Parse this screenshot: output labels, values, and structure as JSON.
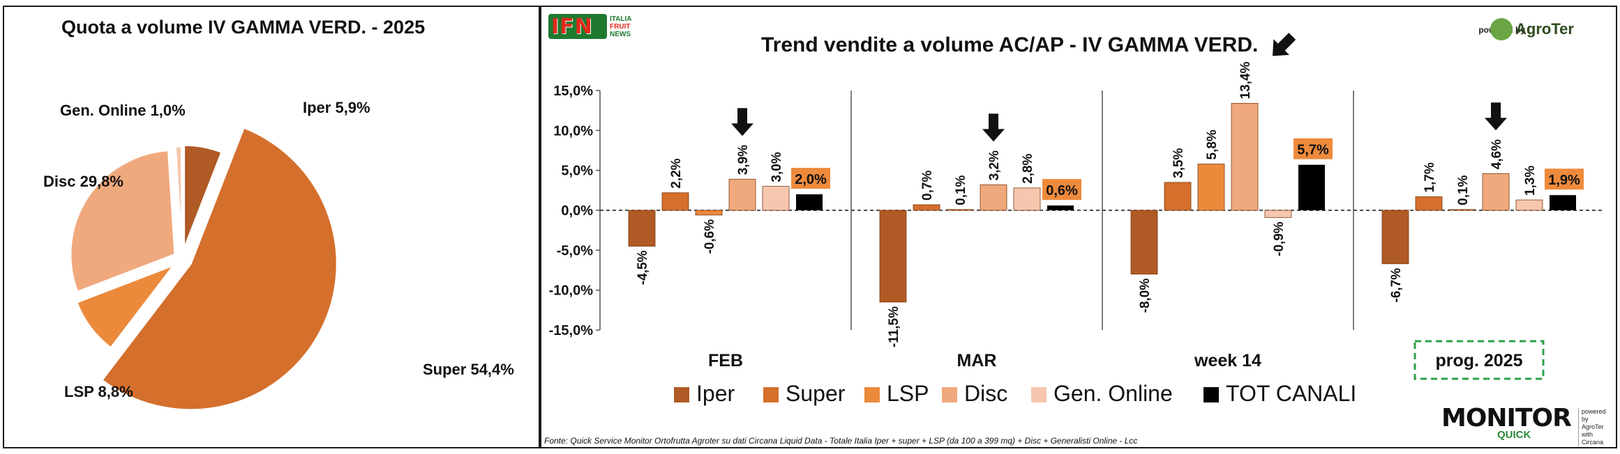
{
  "pie_title": "Quota a volume IV GAMMA VERD. - 2025",
  "bar_title": "Trend vendite a volume AC/AP - IV GAMMA VERD.",
  "logos": {
    "ifn": "IFN",
    "ifn_sub": [
      "ITALIA",
      "FRUIT",
      "NEWS"
    ],
    "powered_by": "powered by",
    "agroter": "AgroTer",
    "monitor": "MONITOR",
    "monitor_sub": "QUICK",
    "monitor_side": [
      "powered by",
      "AgroTer",
      "with",
      "Circana"
    ]
  },
  "source": "Fonte: Quick Service Monitor Ortofrutta Agroter su dati Circana Liquid Data - Totale Italia Iper + super + LSP (da 100 a 399 mq) + Disc + Generalisti Online - Lcc",
  "colors": {
    "Iper": "#b05a25",
    "Super": "#d46f2c",
    "LSP": "#ec8a3c",
    "Disc": "#f0a97d",
    "Gen. Online": "#f6c7ae",
    "TOT CANALI": "#000000",
    "highlight_label_bg": "#ee8a3c",
    "dashed_box": "#2ca04a"
  },
  "chart_data": [
    {
      "type": "pie",
      "title": "Quota a volume IV GAMMA VERD. - 2025",
      "slices": [
        {
          "name": "Iper",
          "value": 5.9,
          "label": "Iper 5,9%"
        },
        {
          "name": "Super",
          "value": 54.4,
          "label": "Super 54,4%"
        },
        {
          "name": "LSP",
          "value": 8.8,
          "label": "LSP 8,8%"
        },
        {
          "name": "Disc",
          "value": 29.8,
          "label": "Disc 29,8%"
        },
        {
          "name": "Gen. Online",
          "value": 1.0,
          "label": "Gen. Online 1,0%"
        }
      ]
    },
    {
      "type": "bar",
      "title": "Trend vendite a volume AC/AP - IV GAMMA VERD.",
      "categories": [
        "FEB",
        "MAR",
        "week 14",
        "prog. 2025"
      ],
      "ylim": [
        -15,
        15
      ],
      "yticks": [
        "-15,0%",
        "-10,0%",
        "-5,0%",
        "0,0%",
        "5,0%",
        "10,0%",
        "15,0%"
      ],
      "grid": false,
      "legend_position": "bottom",
      "series": [
        {
          "name": "Iper",
          "values": [
            -4.5,
            -11.5,
            -8.0,
            -6.7
          ],
          "labels": [
            "-4,5%",
            "-11,5%",
            "-8,0%",
            "-6,7%"
          ]
        },
        {
          "name": "Super",
          "values": [
            2.2,
            0.7,
            3.5,
            1.7
          ],
          "labels": [
            "2,2%",
            "0,7%",
            "3,5%",
            "1,7%"
          ]
        },
        {
          "name": "LSP",
          "values": [
            -0.6,
            0.1,
            5.8,
            0.1
          ],
          "labels": [
            "-0,6%",
            "0,1%",
            "5,8%",
            "0,1%"
          ]
        },
        {
          "name": "Disc",
          "values": [
            3.9,
            3.2,
            13.4,
            4.6
          ],
          "labels": [
            "3,9%",
            "3,2%",
            "13,4%",
            "4,6%"
          ]
        },
        {
          "name": "Gen. Online",
          "values": [
            3.0,
            2.8,
            -0.9,
            1.3
          ],
          "labels": [
            "3,0%",
            "2,8%",
            "-0,9%",
            "1,3%"
          ]
        },
        {
          "name": "TOT CANALI",
          "values": [
            2.0,
            0.6,
            5.7,
            1.9
          ],
          "labels": [
            "2,0%",
            "0,6%",
            "5,7%",
            "1,9%"
          ]
        }
      ],
      "arrow_on_series": "Disc",
      "highlighted_category": "prog. 2025"
    }
  ]
}
